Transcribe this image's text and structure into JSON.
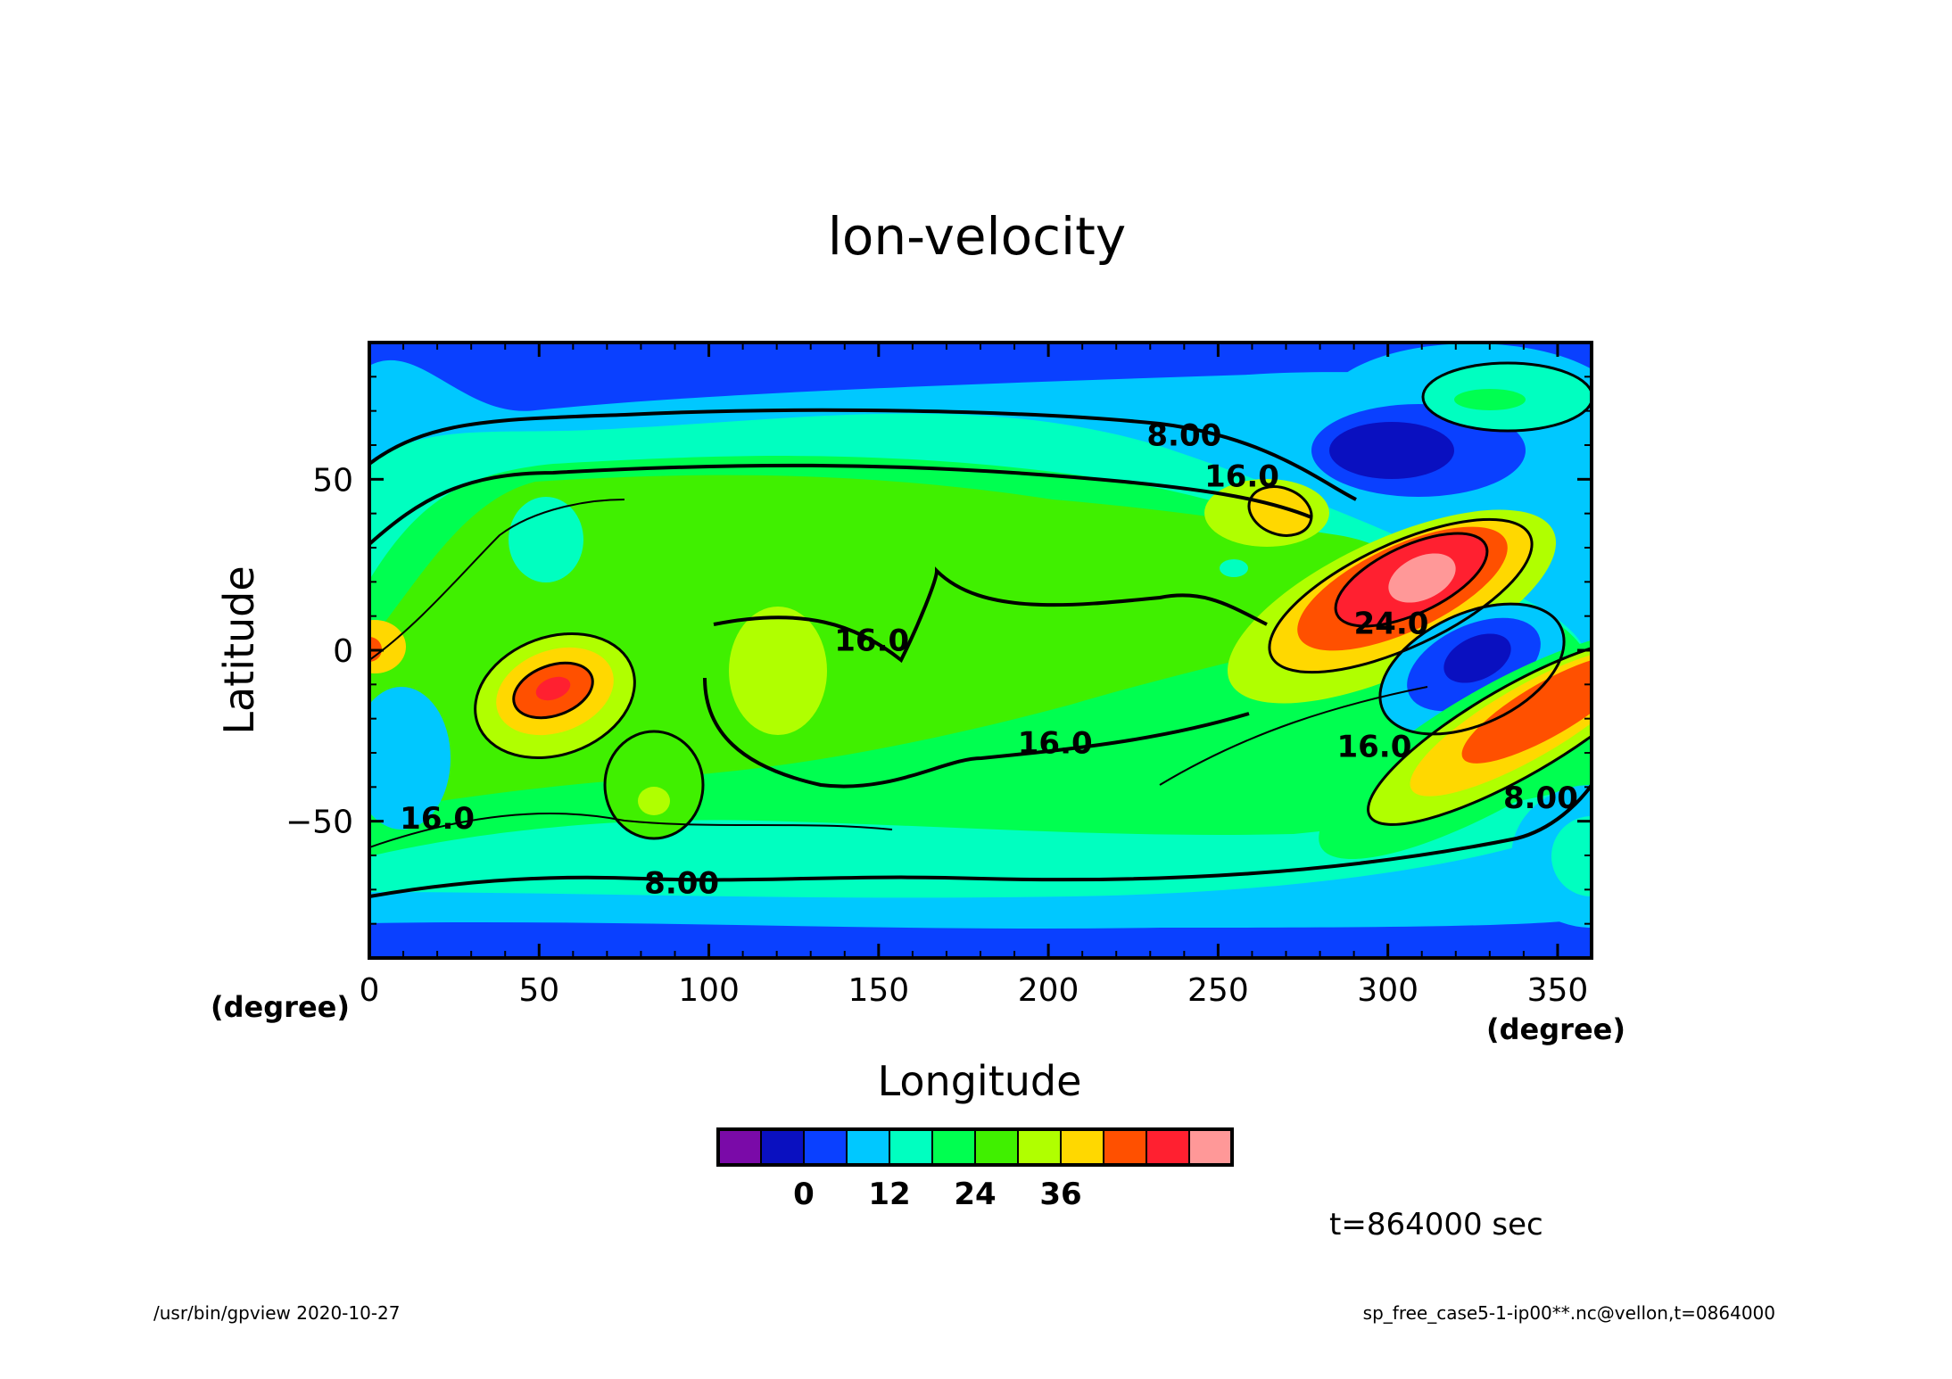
{
  "chart_data": {
    "type": "contour",
    "title": "lon-velocity",
    "xlabel": "Longitude",
    "ylabel": "Latitude",
    "x_unit_left": "(degree)",
    "x_unit_right": "(degree)",
    "xlim": [
      0,
      360
    ],
    "ylim": [
      -90,
      90
    ],
    "x_ticks": [
      0,
      50,
      100,
      150,
      200,
      250,
      300,
      350
    ],
    "y_ticks": [
      50,
      0,
      -50
    ],
    "y_tick_labels": [
      "50",
      "0",
      "−50"
    ],
    "contour_labels": [
      {
        "text": "8.00",
        "lon": 240,
        "lat": 63
      },
      {
        "text": "16.0",
        "lon": 257,
        "lat": 51
      },
      {
        "text": "16.0",
        "lon": 148,
        "lat": 3
      },
      {
        "text": "16.0",
        "lon": 202,
        "lat": -27
      },
      {
        "text": "16.0",
        "lon": 20,
        "lat": -49
      },
      {
        "text": "24.0",
        "lon": 301,
        "lat": 8
      },
      {
        "text": "16.0",
        "lon": 296,
        "lat": -28
      },
      {
        "text": "8.00",
        "lon": 345,
        "lat": -43
      },
      {
        "text": "8.00",
        "lon": 92,
        "lat": -68
      }
    ],
    "colorbar": {
      "levels": [
        -12,
        -6,
        0,
        6,
        12,
        18,
        24,
        30,
        36,
        42,
        48,
        54,
        60
      ],
      "colors": [
        "#7a0aa8",
        "#0a10c0",
        "#0a40ff",
        "#00c8ff",
        "#00ffc0",
        "#00ff50",
        "#40f000",
        "#b0ff00",
        "#ffd800",
        "#ff5000",
        "#ff2030",
        "#ff9898"
      ],
      "tick_labels": [
        "0",
        "12",
        "24",
        "36"
      ]
    },
    "time_label": "t=864000 sec",
    "grid": false
  },
  "footer": {
    "left": "/usr/bin/gpview   2020-10-27",
    "right": "sp_free_case5-1-ip00**.nc@vellon,t=0864000"
  }
}
